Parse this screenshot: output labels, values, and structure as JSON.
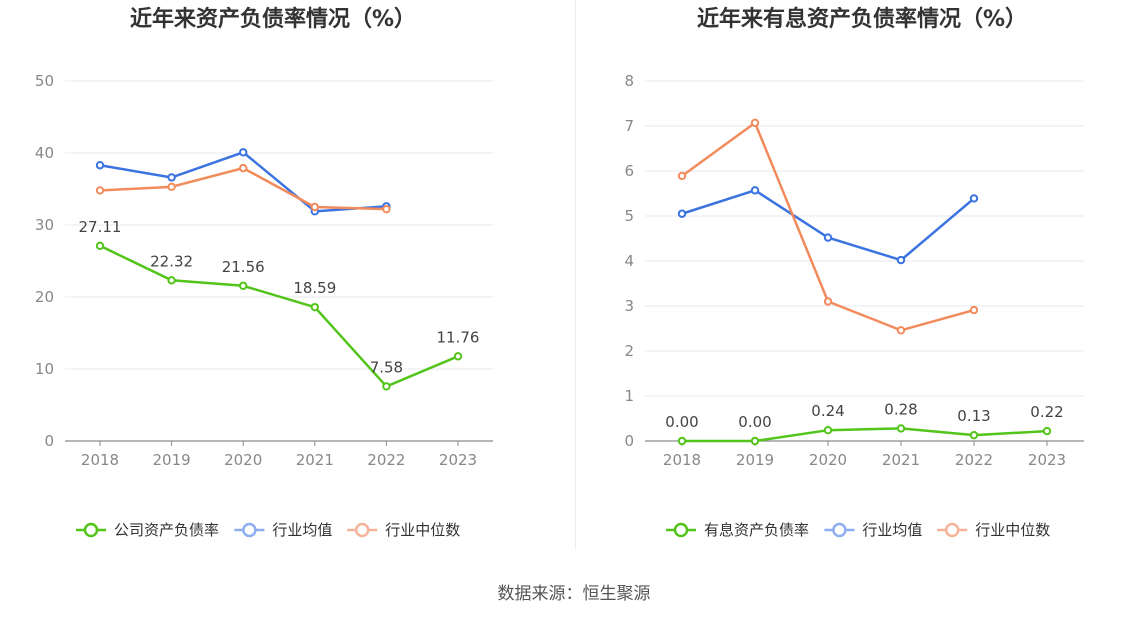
{
  "chart_data": [
    {
      "type": "line",
      "title": "近年来资产负债率情况（%）",
      "categories": [
        "2018",
        "2019",
        "2020",
        "2021",
        "2022",
        "2023"
      ],
      "ylim": [
        0,
        50
      ],
      "yticks": [
        0,
        10,
        20,
        30,
        40,
        50
      ],
      "grid": true,
      "legend_position": "bottom",
      "series": [
        {
          "name": "公司资产负债率",
          "color": "#52c41a",
          "values": [
            27.11,
            22.32,
            21.56,
            18.59,
            7.58,
            11.76
          ],
          "labels": [
            "27.11",
            "22.32",
            "21.56",
            "18.59",
            "7.58",
            "11.76"
          ]
        },
        {
          "name": "行业均值",
          "color": "#3b73e0",
          "values": [
            38.3,
            36.6,
            40.1,
            31.9,
            32.6,
            null
          ]
        },
        {
          "name": "行业中位数",
          "color": "#f28b5c",
          "values": [
            34.8,
            35.3,
            37.9,
            32.5,
            32.2,
            null
          ]
        }
      ]
    },
    {
      "type": "line",
      "title": "近年来有息资产负债率情况（%）",
      "categories": [
        "2018",
        "2019",
        "2020",
        "2021",
        "2022",
        "2023"
      ],
      "ylim": [
        0,
        8
      ],
      "yticks": [
        0,
        1,
        2,
        3,
        4,
        5,
        6,
        7,
        8
      ],
      "grid": true,
      "legend_position": "bottom",
      "series": [
        {
          "name": "有息资产负债率",
          "color": "#52c41a",
          "values": [
            0.0,
            0.0,
            0.24,
            0.28,
            0.13,
            0.22
          ],
          "labels": [
            "0.00",
            "0.00",
            "0.24",
            "0.28",
            "0.13",
            "0.22"
          ]
        },
        {
          "name": "行业均值",
          "color": "#3b73e0",
          "values": [
            5.05,
            5.57,
            4.52,
            4.02,
            5.39,
            null
          ]
        },
        {
          "name": "行业中位数",
          "color": "#f28b5c",
          "values": [
            5.89,
            7.07,
            3.1,
            2.46,
            2.91,
            null
          ]
        }
      ]
    }
  ],
  "source": "数据来源：恒生聚源"
}
